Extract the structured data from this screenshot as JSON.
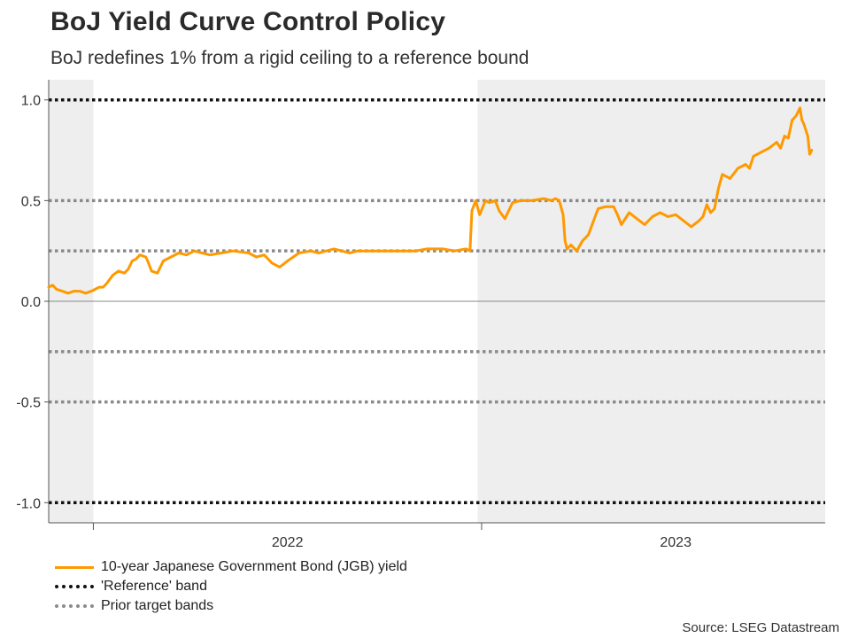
{
  "title": "BoJ Yield Curve Control Policy",
  "subtitle": "BoJ redefines 1% from a rigid ceiling to a reference bound",
  "source": "Source: LSEG Datastream",
  "legend": {
    "series": "10-year Japanese Government Bond (JGB) yield",
    "reference": "'Reference' band",
    "prior": "Prior target bands"
  },
  "colors": {
    "series": "#ff9900",
    "reference": "#111111",
    "prior": "#8a8a8a",
    "shade": "#eeeeee",
    "zero": "#888888"
  },
  "chart_data": {
    "type": "line",
    "title": "BoJ Yield Curve Control Policy",
    "xlabel": "",
    "ylabel": "",
    "x_range": [
      2021.885,
      2023.885
    ],
    "ylim": [
      -1.1,
      1.1
    ],
    "yticks": [
      1.0,
      0.5,
      0.0,
      -0.5,
      -1.0
    ],
    "ytick_labels": [
      "1.0",
      "0.5",
      "0.0",
      "-0.5",
      "-1.0"
    ],
    "xticks": [
      {
        "value": 2022.0,
        "label": ""
      },
      {
        "value": 2022.5,
        "label": "2022"
      },
      {
        "value": 2023.0,
        "label": ""
      },
      {
        "value": 2023.5,
        "label": "2023"
      }
    ],
    "shaded_periods": [
      [
        2021.885,
        2022.0
      ],
      [
        2022.99,
        2023.885
      ]
    ],
    "reference_band": [
      -1.0,
      1.0
    ],
    "prior_bands": [
      0.5,
      0.25,
      -0.25,
      -0.5
    ],
    "zero_line": 0.0,
    "series": [
      {
        "name": "10-year Japanese Government Bond (JGB) yield",
        "x": [
          2021.885,
          2021.895,
          2021.905,
          2021.92,
          2021.935,
          2021.95,
          2021.965,
          2021.98,
          2021.995,
          2022.005,
          2022.015,
          2022.025,
          2022.035,
          2022.05,
          2022.065,
          2022.08,
          2022.09,
          2022.1,
          2022.11,
          2022.12,
          2022.135,
          2022.14,
          2022.15,
          2022.165,
          2022.18,
          2022.2,
          2022.22,
          2022.24,
          2022.26,
          2022.28,
          2022.3,
          2022.33,
          2022.36,
          2022.4,
          2022.42,
          2022.44,
          2022.46,
          2022.48,
          2022.5,
          2022.53,
          2022.56,
          2022.58,
          2022.6,
          2022.62,
          2022.64,
          2022.66,
          2022.68,
          2022.71,
          2022.74,
          2022.77,
          2022.8,
          2022.83,
          2022.86,
          2022.9,
          2022.93,
          2022.96,
          2022.97,
          2022.975,
          2022.985,
          2022.995,
          2023.01,
          2023.02,
          2023.035,
          2023.045,
          2023.06,
          2023.08,
          2023.1,
          2023.13,
          2023.16,
          2023.18,
          2023.19,
          2023.2,
          2023.21,
          2023.215,
          2023.22,
          2023.23,
          2023.245,
          2023.26,
          2023.275,
          2023.3,
          2023.32,
          2023.34,
          2023.35,
          2023.36,
          2023.38,
          2023.4,
          2023.42,
          2023.44,
          2023.46,
          2023.48,
          2023.5,
          2023.52,
          2023.54,
          2023.56,
          2023.57,
          2023.58,
          2023.585,
          2023.59,
          2023.6,
          2023.61,
          2023.62,
          2023.64,
          2023.66,
          2023.68,
          2023.69,
          2023.7,
          2023.72,
          2023.74,
          2023.76,
          2023.77,
          2023.78,
          2023.79,
          2023.8,
          2023.81,
          2023.82,
          2023.825,
          2023.83,
          2023.84,
          2023.845,
          2023.85
        ],
        "values": [
          0.07,
          0.08,
          0.06,
          0.05,
          0.04,
          0.05,
          0.05,
          0.04,
          0.05,
          0.06,
          0.07,
          0.07,
          0.09,
          0.13,
          0.15,
          0.14,
          0.16,
          0.2,
          0.21,
          0.23,
          0.22,
          0.2,
          0.15,
          0.14,
          0.2,
          0.22,
          0.24,
          0.23,
          0.25,
          0.24,
          0.23,
          0.24,
          0.25,
          0.24,
          0.22,
          0.23,
          0.19,
          0.17,
          0.2,
          0.24,
          0.25,
          0.24,
          0.25,
          0.26,
          0.25,
          0.24,
          0.25,
          0.25,
          0.25,
          0.25,
          0.25,
          0.25,
          0.26,
          0.26,
          0.25,
          0.26,
          0.25,
          0.45,
          0.5,
          0.43,
          0.5,
          0.49,
          0.5,
          0.45,
          0.41,
          0.49,
          0.5,
          0.5,
          0.51,
          0.5,
          0.51,
          0.5,
          0.43,
          0.3,
          0.26,
          0.28,
          0.25,
          0.3,
          0.33,
          0.46,
          0.47,
          0.47,
          0.43,
          0.38,
          0.44,
          0.41,
          0.38,
          0.42,
          0.44,
          0.42,
          0.43,
          0.4,
          0.37,
          0.4,
          0.42,
          0.48,
          0.46,
          0.44,
          0.46,
          0.56,
          0.63,
          0.61,
          0.66,
          0.68,
          0.66,
          0.72,
          0.74,
          0.76,
          0.79,
          0.76,
          0.82,
          0.81,
          0.9,
          0.92,
          0.96,
          0.9,
          0.88,
          0.82,
          0.73,
          0.75
        ]
      }
    ]
  }
}
